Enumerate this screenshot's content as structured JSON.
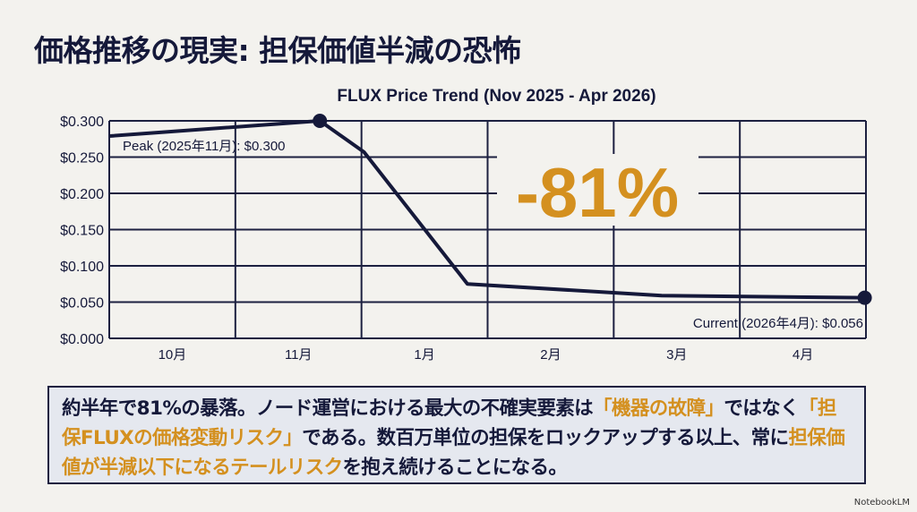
{
  "title": "価格推移の現実: 担保価値半減の恐怖",
  "chart_data": {
    "type": "line",
    "title": "FLUX Price Trend (Nov 2025 - Apr 2026)",
    "xlabel": "",
    "ylabel": "",
    "categories": [
      "10月",
      "11月",
      "1月",
      "2月",
      "3月",
      "4月"
    ],
    "yticks": [
      "$0.000",
      "$0.050",
      "$0.100",
      "$0.150",
      "$0.200",
      "$0.250",
      "$0.300"
    ],
    "ylim": [
      0,
      0.3
    ],
    "grid": true,
    "series": [
      {
        "name": "FLUX",
        "x": [
          -0.5,
          1.17,
          1.52,
          2.34,
          3.88,
          5.49
        ],
        "values": [
          0.279,
          0.3,
          0.257,
          0.075,
          0.059,
          0.056
        ]
      }
    ],
    "markers": [
      1,
      5
    ],
    "annotations": {
      "peak": "Peak (2025年11月): $0.300",
      "current": "Current (2026年4月): $0.056",
      "drop": "-81%"
    },
    "colors": {
      "line": "#15193a",
      "accent": "#d4901f",
      "grid": "#1c2040"
    }
  },
  "callout": {
    "t1": "約半年で81%の暴落。ノード運営における最大の不確実要素は",
    "h1": "「機器の故障」",
    "t2": "ではなく",
    "h2": "「担保FLUXの価格変動リスク」",
    "t3": "である。数百万単位の担保をロックアップする以上、常に",
    "h3": "担保価値が半減以下になるテールリスク",
    "t4": "を抱え続けることになる。"
  },
  "brand": "NotebookLM"
}
